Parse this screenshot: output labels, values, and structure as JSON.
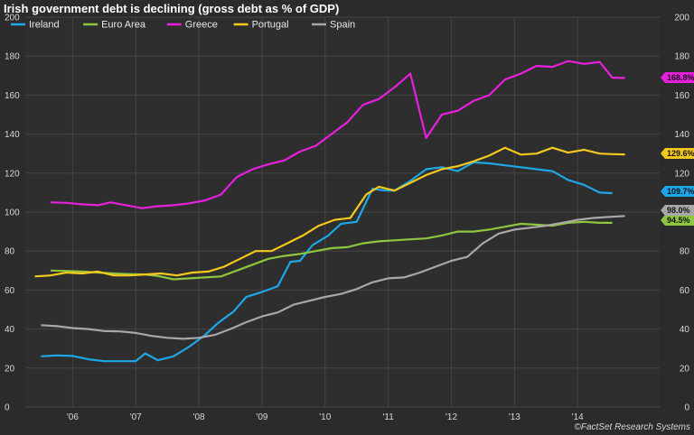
{
  "chart_data": {
    "type": "line",
    "title": "Irish government debt is declining (gross debt as % of GDP)",
    "credit": "©FactSet Research Systems",
    "ylim": [
      0,
      200
    ],
    "yticks": [
      0,
      20,
      40,
      60,
      80,
      100,
      120,
      140,
      160,
      180,
      200
    ],
    "xlim": [
      2005.25,
      2015.3
    ],
    "xticks": [
      {
        "value": 2006,
        "label": "'06"
      },
      {
        "value": 2007,
        "label": "'07"
      },
      {
        "value": 2008,
        "label": "'08"
      },
      {
        "value": 2009,
        "label": "'09"
      },
      {
        "value": 2010,
        "label": "'10"
      },
      {
        "value": 2011,
        "label": "'11"
      },
      {
        "value": 2012,
        "label": "'12"
      },
      {
        "value": 2013,
        "label": "'13"
      },
      {
        "value": 2014,
        "label": "'14"
      }
    ],
    "grid": true,
    "legend_position": "top-left",
    "series": [
      {
        "name": "Ireland",
        "color": "#1ea7e6",
        "end_label": "109.7%",
        "x": [
          2005.5,
          2005.75,
          2006.0,
          2006.25,
          2006.5,
          2006.75,
          2007.0,
          2007.15,
          2007.35,
          2007.6,
          2007.85,
          2008.1,
          2008.3,
          2008.55,
          2008.75,
          2009.0,
          2009.25,
          2009.45,
          2009.6,
          2009.8,
          2010.05,
          2010.25,
          2010.5,
          2010.75,
          2010.95,
          2011.1,
          2011.35,
          2011.6,
          2011.85,
          2012.1,
          2012.35,
          2012.6,
          2012.85,
          2013.1,
          2013.35,
          2013.6,
          2013.85,
          2014.1,
          2014.35,
          2014.55
        ],
        "y": [
          26,
          26.5,
          26.2,
          24.5,
          23.5,
          23.5,
          23.5,
          27.5,
          24,
          26,
          31,
          37,
          43,
          49,
          56.5,
          59,
          62,
          74.5,
          75,
          83,
          88,
          94,
          95,
          112,
          111,
          111,
          116,
          122,
          123,
          121,
          125.5,
          125,
          124,
          123,
          122,
          121,
          116.5,
          114,
          110,
          109.7
        ]
      },
      {
        "name": "Euro Area",
        "color": "#8dc63f",
        "end_label": "94.5%",
        "x": [
          2005.65,
          2005.9,
          2006.15,
          2006.4,
          2006.65,
          2006.9,
          2007.15,
          2007.35,
          2007.6,
          2007.85,
          2008.1,
          2008.35,
          2008.6,
          2008.85,
          2009.1,
          2009.35,
          2009.6,
          2009.85,
          2010.1,
          2010.35,
          2010.6,
          2010.85,
          2011.1,
          2011.35,
          2011.6,
          2011.85,
          2012.1,
          2012.35,
          2012.6,
          2012.85,
          2013.1,
          2013.35,
          2013.6,
          2013.85,
          2014.1,
          2014.35,
          2014.55
        ],
        "y": [
          70,
          69.8,
          69.5,
          69,
          68.5,
          68.2,
          68,
          67.2,
          65.5,
          66,
          66.5,
          67,
          70,
          73,
          76,
          77.5,
          78.5,
          80,
          81.5,
          82,
          84,
          85,
          85.5,
          86,
          86.5,
          88,
          90,
          90,
          91,
          92.5,
          94,
          93.5,
          93,
          94.5,
          95,
          94.5,
          94.5
        ]
      },
      {
        "name": "Greece",
        "color": "#e81fdf",
        "end_label": "168.8%",
        "x": [
          2005.65,
          2005.9,
          2006.15,
          2006.4,
          2006.6,
          2006.85,
          2007.1,
          2007.35,
          2007.6,
          2007.85,
          2008.1,
          2008.35,
          2008.6,
          2008.85,
          2009.1,
          2009.35,
          2009.6,
          2009.85,
          2010.1,
          2010.35,
          2010.6,
          2010.85,
          2011.1,
          2011.35,
          2011.6,
          2011.85,
          2012.1,
          2012.35,
          2012.6,
          2012.85,
          2013.1,
          2013.35,
          2013.6,
          2013.85,
          2014.1,
          2014.35,
          2014.55,
          2014.75
        ],
        "y": [
          105,
          104.7,
          104,
          103.5,
          105,
          103.5,
          102,
          103,
          103.5,
          104.5,
          106,
          109,
          118,
          122,
          124.5,
          126.5,
          131,
          134,
          140,
          146,
          155,
          158,
          164,
          171,
          138,
          150,
          152,
          157,
          160,
          168,
          171,
          175,
          174.5,
          177.5,
          176,
          177,
          169,
          168.8
        ]
      },
      {
        "name": "Portugal",
        "color": "#f5c81e",
        "end_label": "129.6%",
        "x": [
          2005.4,
          2005.65,
          2005.9,
          2006.15,
          2006.4,
          2006.65,
          2006.9,
          2007.15,
          2007.4,
          2007.65,
          2007.9,
          2008.15,
          2008.4,
          2008.65,
          2008.9,
          2009.15,
          2009.4,
          2009.65,
          2009.9,
          2010.15,
          2010.4,
          2010.65,
          2010.85,
          2011.1,
          2011.35,
          2011.6,
          2011.85,
          2012.1,
          2012.35,
          2012.6,
          2012.85,
          2013.1,
          2013.35,
          2013.6,
          2013.85,
          2014.1,
          2014.35,
          2014.55,
          2014.75
        ],
        "y": [
          67,
          67.5,
          69,
          68.5,
          69.5,
          67.5,
          67.5,
          68,
          68.5,
          67.5,
          69,
          69.5,
          72,
          76,
          80,
          80,
          84,
          88,
          93,
          96,
          97,
          109,
          113,
          111,
          115,
          119,
          122,
          123.5,
          126,
          129,
          133,
          129.5,
          130,
          133,
          130.5,
          132,
          130,
          129.7,
          129.6
        ]
      },
      {
        "name": "Spain",
        "color": "#a8a8a8",
        "end_label": "98.0%",
        "x": [
          2005.5,
          2005.75,
          2006.0,
          2006.25,
          2006.5,
          2006.75,
          2007.0,
          2007.25,
          2007.5,
          2007.75,
          2008.0,
          2008.25,
          2008.5,
          2008.75,
          2009.0,
          2009.25,
          2009.5,
          2009.75,
          2010.0,
          2010.25,
          2010.5,
          2010.75,
          2011.0,
          2011.25,
          2011.5,
          2011.75,
          2012.0,
          2012.25,
          2012.5,
          2012.75,
          2013.0,
          2013.25,
          2013.5,
          2013.75,
          2014.0,
          2014.25,
          2014.5,
          2014.75
        ],
        "y": [
          42,
          41.5,
          40.5,
          40,
          39,
          38.8,
          38,
          36.5,
          35.5,
          35,
          35.5,
          37,
          40,
          43.5,
          46.5,
          48.5,
          52.5,
          54.5,
          56.5,
          58,
          60.5,
          64,
          66,
          66.5,
          69,
          72,
          75,
          77,
          84,
          89,
          91,
          92,
          93,
          94.5,
          96,
          97,
          97.5,
          98
        ]
      }
    ]
  }
}
